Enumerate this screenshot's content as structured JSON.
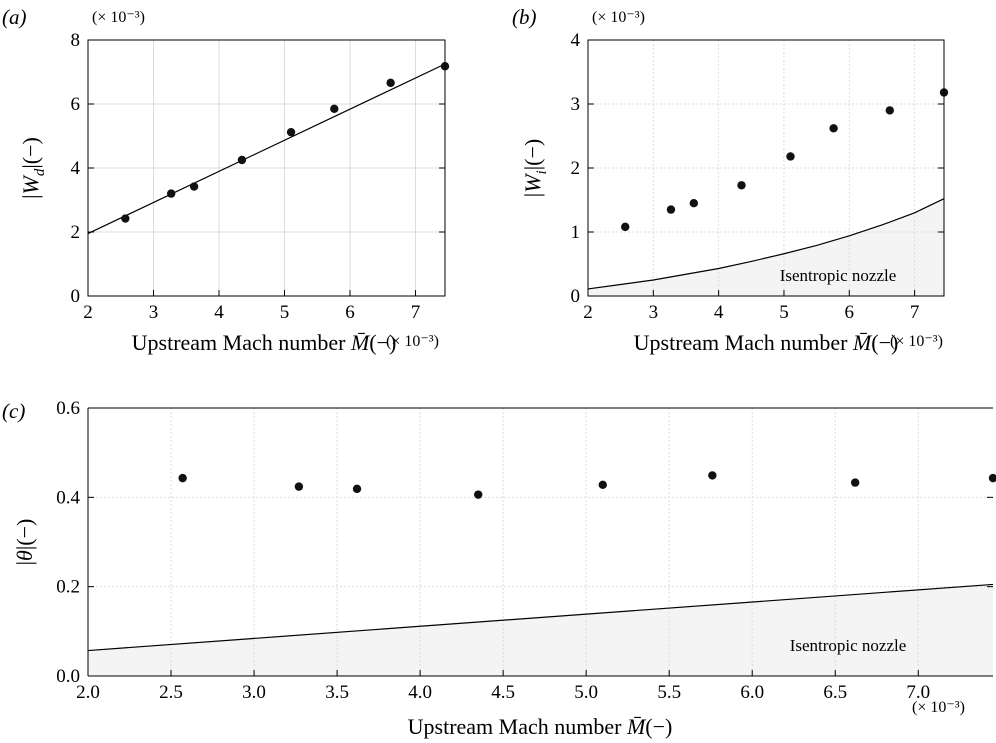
{
  "chart_data": [
    {
      "panel": "(a)",
      "type": "scatter",
      "xlabel": "Upstream Mach number M̄(−)",
      "ylabel": "|W_d|(−)",
      "x_multiplier": "(× 10⁻³)",
      "y_multiplier": "(× 10⁻³)",
      "xlim": [
        2,
        7.45
      ],
      "ylim": [
        0,
        8
      ],
      "xticks": [
        2,
        3,
        4,
        5,
        6,
        7
      ],
      "yticks": [
        0,
        2,
        4,
        6,
        8
      ],
      "tick_format": 0,
      "grid": true,
      "series": [
        {
          "kind": "points",
          "x": [
            2.57,
            3.27,
            3.62,
            4.35,
            5.1,
            5.76,
            6.62,
            7.45
          ],
          "y": [
            2.42,
            3.2,
            3.42,
            4.25,
            5.12,
            5.85,
            6.66,
            7.18
          ]
        },
        {
          "kind": "fit-line",
          "x": [
            2.0,
            7.45
          ],
          "y": [
            1.95,
            7.25
          ]
        }
      ]
    },
    {
      "panel": "(b)",
      "type": "scatter",
      "xlabel": "Upstream Mach number M̄(−)",
      "ylabel": "|W_i|(−)",
      "x_multiplier": "(× 10⁻³)",
      "y_multiplier": "(× 10⁻³)",
      "xlim": [
        2,
        7.45
      ],
      "ylim": [
        0,
        4
      ],
      "xticks": [
        2,
        3,
        4,
        5,
        6,
        7
      ],
      "yticks": [
        0,
        1,
        2,
        3,
        4
      ],
      "tick_format": 0,
      "grid": true,
      "series": [
        {
          "kind": "points",
          "x": [
            2.57,
            3.27,
            3.62,
            4.35,
            5.1,
            5.76,
            6.62,
            7.45
          ],
          "y": [
            1.08,
            1.35,
            1.45,
            1.73,
            2.18,
            2.62,
            2.9,
            3.18
          ]
        },
        {
          "kind": "shaded-curve",
          "label": "Isentropic nozzle",
          "x": [
            2.0,
            2.5,
            3.0,
            3.5,
            4.0,
            4.5,
            5.0,
            5.5,
            6.0,
            6.5,
            7.0,
            7.45
          ],
          "y": [
            0.11,
            0.18,
            0.25,
            0.34,
            0.43,
            0.54,
            0.66,
            0.79,
            0.94,
            1.11,
            1.3,
            1.52
          ]
        }
      ]
    },
    {
      "panel": "(c)",
      "type": "scatter",
      "xlabel": "Upstream Mach number M̄(−)",
      "ylabel": "|θ|(−)",
      "x_multiplier": "(× 10⁻³)",
      "xlim": [
        2,
        7.45
      ],
      "ylim": [
        0,
        0.6
      ],
      "xticks": [
        2.0,
        2.5,
        3.0,
        3.5,
        4.0,
        4.5,
        5.0,
        5.5,
        6.0,
        6.5,
        7.0
      ],
      "yticks": [
        0,
        0.2,
        0.4,
        0.6
      ],
      "tick_format": 1,
      "grid": true,
      "series": [
        {
          "kind": "points",
          "x": [
            2.57,
            3.27,
            3.62,
            4.35,
            5.1,
            5.76,
            6.62,
            7.45
          ],
          "y": [
            0.443,
            0.424,
            0.419,
            0.406,
            0.428,
            0.449,
            0.433,
            0.443
          ]
        },
        {
          "kind": "shaded-curve",
          "label": "Isentropic nozzle",
          "x": [
            2.0,
            7.45
          ],
          "y": [
            0.057,
            0.205
          ]
        }
      ]
    }
  ]
}
